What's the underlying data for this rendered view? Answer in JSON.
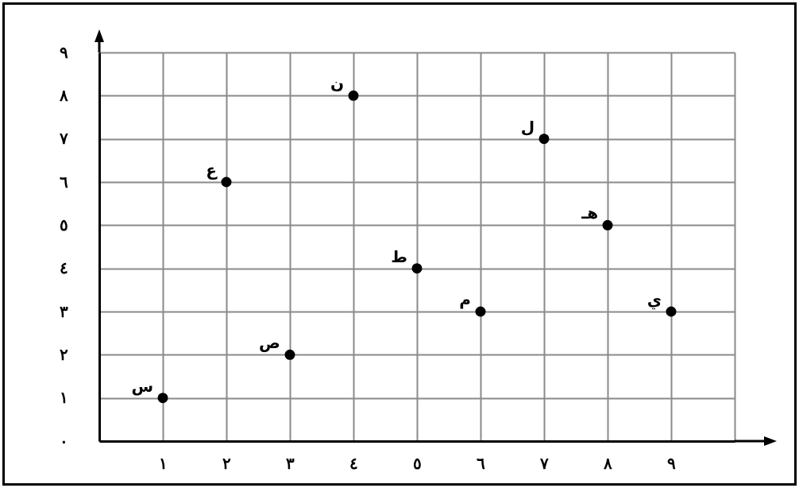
{
  "chart_data": {
    "type": "scatter",
    "x": [
      1,
      2,
      3,
      4,
      5,
      6,
      7,
      8,
      9
    ],
    "series": [
      {
        "color": "#000000",
        "values": [
          1,
          6,
          2,
          8,
          4,
          3,
          7,
          5,
          3
        ]
      }
    ],
    "xlim": [
      0,
      10
    ],
    "ylim": [
      0,
      9
    ],
    "xticks": [
      {
        "value": 1,
        "label": "١"
      },
      {
        "value": 2,
        "label": "٢"
      },
      {
        "value": 3,
        "label": "٣"
      },
      {
        "value": 4,
        "label": "٤"
      },
      {
        "value": 5,
        "label": "٥"
      },
      {
        "value": 6,
        "label": "٦"
      },
      {
        "value": 7,
        "label": "٧"
      },
      {
        "value": 8,
        "label": "٨"
      },
      {
        "value": 9,
        "label": "٩"
      },
      {
        "value": 10,
        "label": null
      }
    ],
    "yticks": [
      {
        "value": 0,
        "label": "٠"
      },
      {
        "value": 1,
        "label": "١"
      },
      {
        "value": 2,
        "label": "٢"
      },
      {
        "value": 3,
        "label": "٣"
      },
      {
        "value": 4,
        "label": "٤"
      },
      {
        "value": 5,
        "label": "٥"
      },
      {
        "value": 6,
        "label": "٦"
      },
      {
        "value": 7,
        "label": "٧"
      },
      {
        "value": 8,
        "label": "٨"
      },
      {
        "value": 9,
        "label": "٩"
      }
    ],
    "grid": true,
    "marker": "circle",
    "legend": false,
    "annotations": [
      {
        "text": "س",
        "x": 1,
        "y": 1
      },
      {
        "text": "ع",
        "x": 2,
        "y": 6
      },
      {
        "text": "ص",
        "x": 3,
        "y": 2
      },
      {
        "text": "ن",
        "x": 4,
        "y": 8
      },
      {
        "text": "ط",
        "x": 5,
        "y": 4
      },
      {
        "text": "م",
        "x": 6,
        "y": 3
      },
      {
        "text": "ل",
        "x": 7,
        "y": 7
      },
      {
        "text": "هـ",
        "x": 8,
        "y": 5
      },
      {
        "text": "ي",
        "x": 9,
        "y": 3
      }
    ]
  }
}
